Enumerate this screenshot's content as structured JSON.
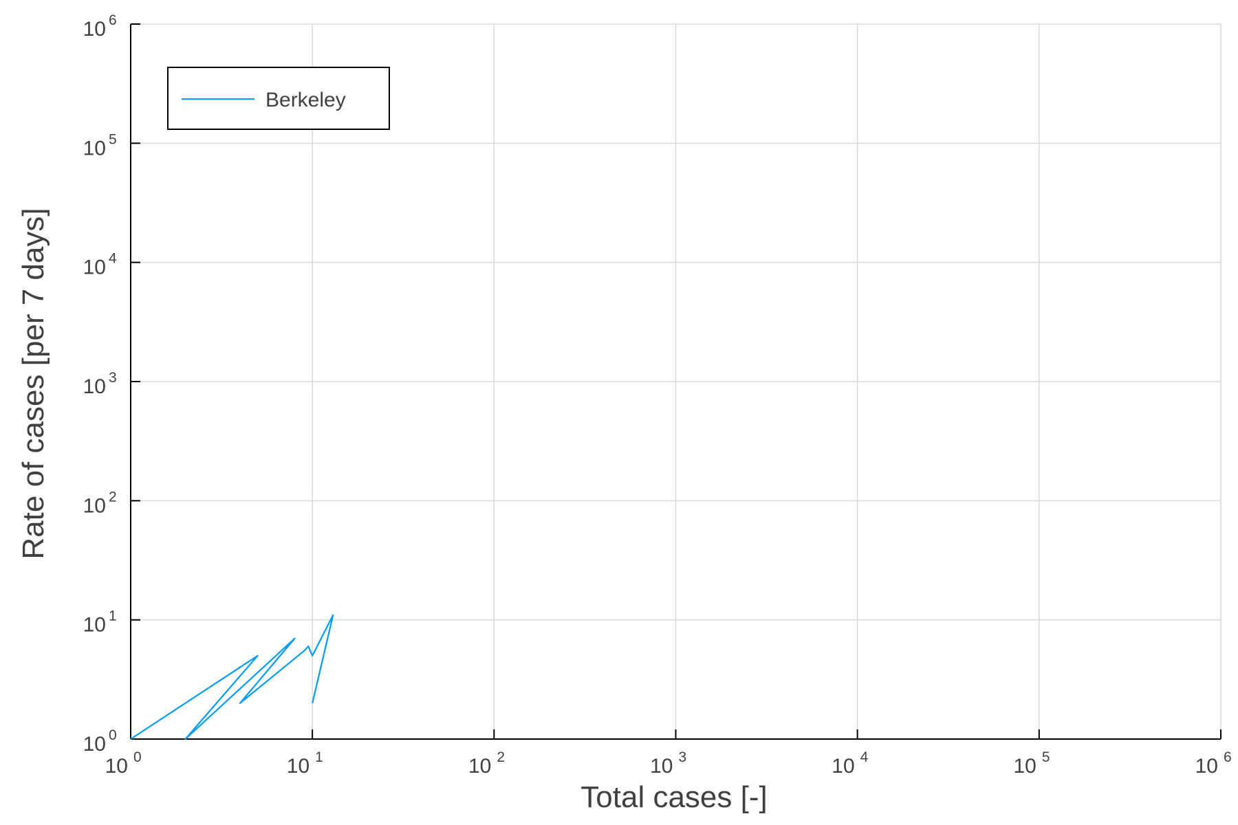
{
  "chart_data": {
    "type": "line",
    "xlabel": "Total cases [-]",
    "ylabel": "Rate of cases [per 7 days]",
    "xscale": "log",
    "yscale": "log",
    "xlim": [
      1,
      1000000
    ],
    "ylim": [
      1,
      1000000
    ],
    "tick_base": "10",
    "x_tick_exponents": [
      "0",
      "1",
      "2",
      "3",
      "4",
      "5",
      "6"
    ],
    "y_tick_exponents": [
      "0",
      "1",
      "2",
      "3",
      "4",
      "5",
      "6"
    ],
    "grid": true,
    "legend": {
      "position": "top-left",
      "entries": [
        "Berkeley"
      ]
    },
    "series": [
      {
        "name": "Berkeley",
        "color": "#009AF9",
        "x": [
          1,
          5,
          2,
          8,
          4,
          9,
          9.5,
          10,
          13,
          10
        ],
        "y": [
          1,
          5,
          1,
          7,
          2,
          5.5,
          6,
          5,
          11,
          2
        ]
      }
    ]
  }
}
